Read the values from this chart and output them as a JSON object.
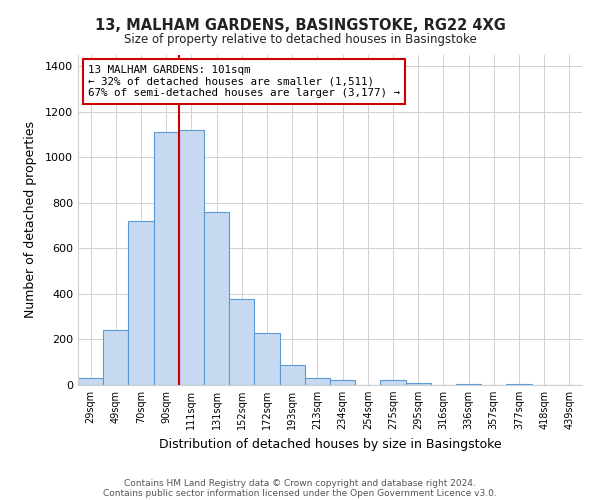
{
  "title": "13, MALHAM GARDENS, BASINGSTOKE, RG22 4XG",
  "subtitle": "Size of property relative to detached houses in Basingstoke",
  "xlabel": "Distribution of detached houses by size in Basingstoke",
  "ylabel": "Number of detached properties",
  "bar_labels": [
    "29sqm",
    "49sqm",
    "70sqm",
    "90sqm",
    "111sqm",
    "131sqm",
    "152sqm",
    "172sqm",
    "193sqm",
    "213sqm",
    "234sqm",
    "254sqm",
    "275sqm",
    "295sqm",
    "316sqm",
    "336sqm",
    "357sqm",
    "377sqm",
    "418sqm",
    "439sqm"
  ],
  "bar_values": [
    30,
    240,
    720,
    1110,
    1120,
    760,
    380,
    230,
    90,
    30,
    20,
    0,
    20,
    10,
    0,
    5,
    0,
    5,
    0,
    0
  ],
  "bar_color": "#c6d9f0",
  "bar_edge_color": "#5b9bd5",
  "annotation_line1": "13 MALHAM GARDENS: 101sqm",
  "annotation_line2": "← 32% of detached houses are smaller (1,511)",
  "annotation_line3": "67% of semi-detached houses are larger (3,177) →",
  "annotation_box_color": "#ffffff",
  "annotation_box_edge_color": "#cc0000",
  "vline_x_index": 3.5,
  "vline_color": "#cc0000",
  "ylim": [
    0,
    1450
  ],
  "yticks": [
    0,
    200,
    400,
    600,
    800,
    1000,
    1200,
    1400
  ],
  "footer_line1": "Contains HM Land Registry data © Crown copyright and database right 2024.",
  "footer_line2": "Contains public sector information licensed under the Open Government Licence v3.0.",
  "background_color": "#ffffff",
  "grid_color": "#d0d0d0"
}
